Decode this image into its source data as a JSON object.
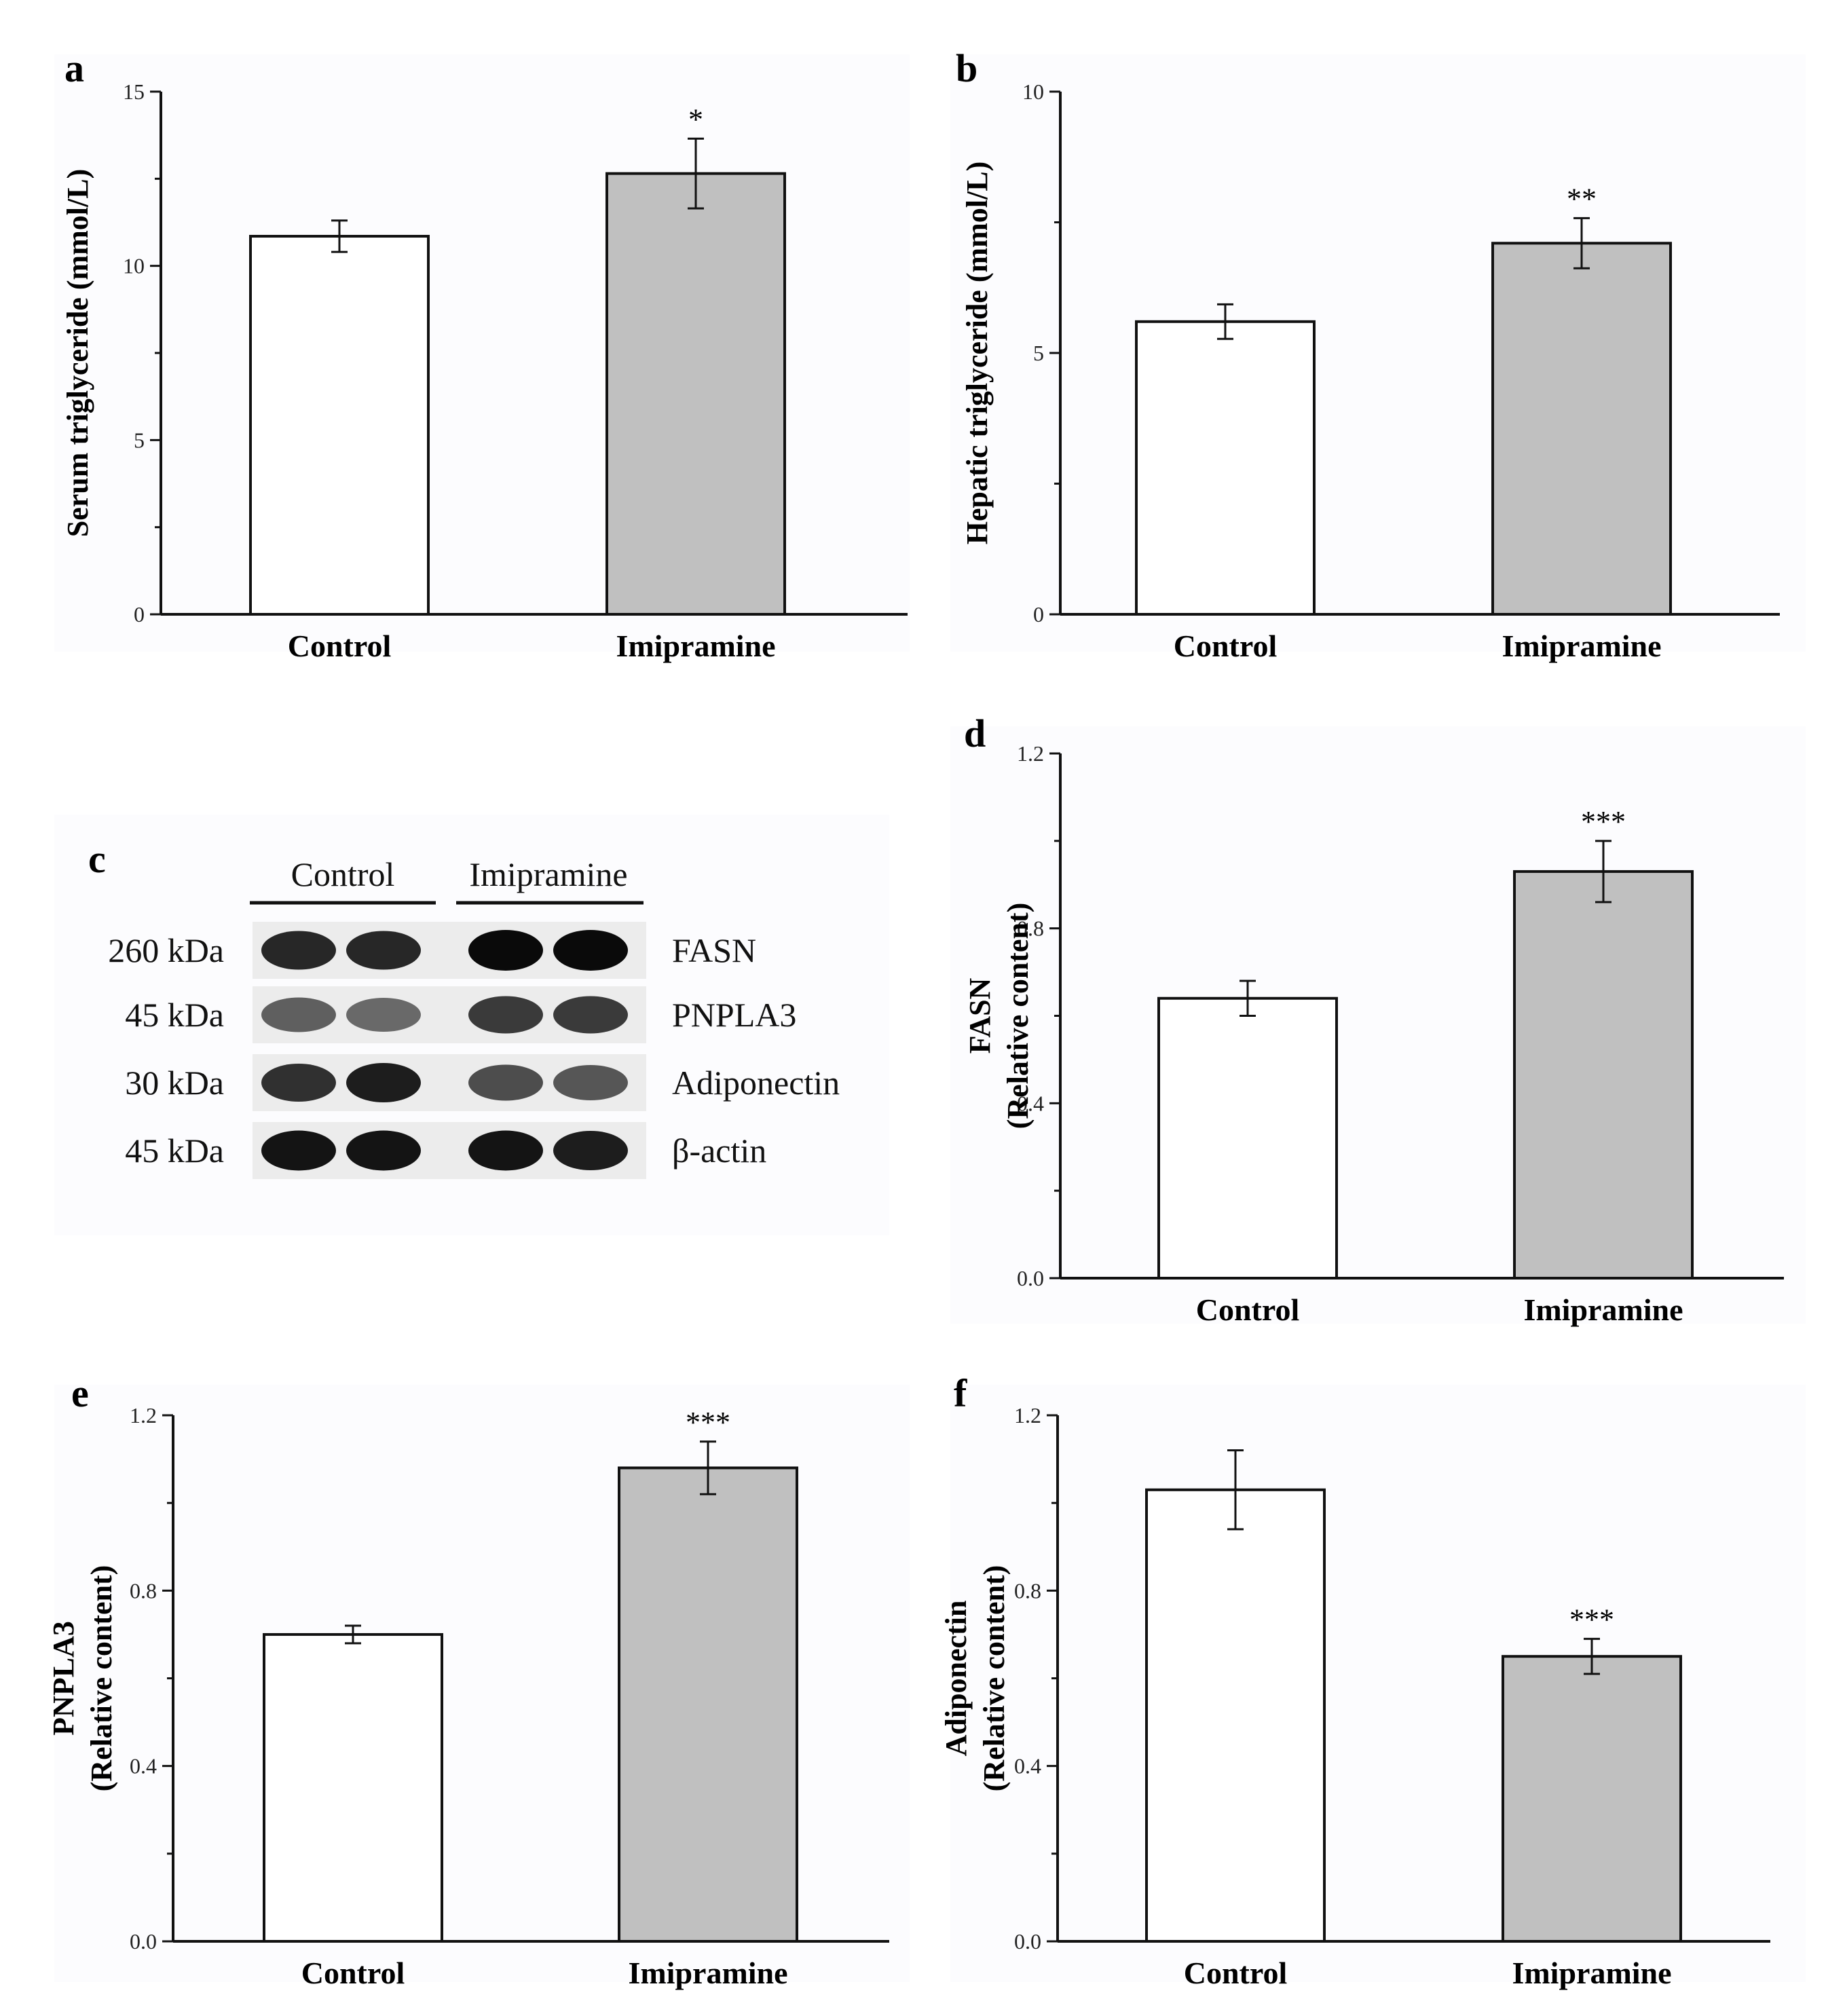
{
  "colors": {
    "control": "#ffffff",
    "imipramine": "#c0c0c0",
    "stroke": "#111111",
    "panel_bg": "#fcfcfe"
  },
  "chart_data": [
    {
      "id": "a",
      "panel": "a",
      "type": "bar",
      "categories": [
        "Control",
        "Imipramine"
      ],
      "values": [
        10.85,
        12.65
      ],
      "errors": [
        0.45,
        1.0
      ],
      "significance": [
        "",
        "*"
      ],
      "ylabel": [
        "Serum triglyceride (mmol/L)"
      ],
      "ylim": [
        0,
        15
      ],
      "yticks": [
        0,
        5,
        10,
        15
      ],
      "ytick_labels": [
        "0",
        "5",
        "10",
        "15"
      ]
    },
    {
      "id": "b",
      "panel": "b",
      "type": "bar",
      "categories": [
        "Control",
        "Imipramine"
      ],
      "values": [
        5.6,
        7.1
      ],
      "errors": [
        0.33,
        0.48
      ],
      "significance": [
        "",
        "**"
      ],
      "ylabel": [
        "Hepatic triglyceride (mmol/L)"
      ],
      "ylim": [
        0,
        10
      ],
      "yticks": [
        0,
        5,
        10
      ],
      "ytick_labels": [
        "0",
        "5",
        "10"
      ]
    },
    {
      "id": "d",
      "panel": "d",
      "type": "bar",
      "categories": [
        "Control",
        "Imipramine"
      ],
      "values": [
        0.64,
        0.93
      ],
      "errors": [
        0.04,
        0.07
      ],
      "significance": [
        "",
        "***"
      ],
      "ylabel": [
        "FASN",
        "(Relative content)"
      ],
      "ylim": [
        0,
        1.2
      ],
      "yticks": [
        0,
        0.4,
        0.8,
        1.2
      ],
      "ytick_labels": [
        "0.0",
        "0.4",
        "0.8",
        "1.2"
      ]
    },
    {
      "id": "e",
      "panel": "e",
      "type": "bar",
      "categories": [
        "Control",
        "Imipramine"
      ],
      "values": [
        0.7,
        1.08
      ],
      "errors": [
        0.02,
        0.06
      ],
      "significance": [
        "",
        "***"
      ],
      "ylabel": [
        "PNPLA3",
        "(Relative content)"
      ],
      "ylim": [
        0,
        1.2
      ],
      "yticks": [
        0,
        0.4,
        0.8,
        1.2
      ],
      "ytick_labels": [
        "0.0",
        "0.4",
        "0.8",
        "1.2"
      ]
    },
    {
      "id": "f",
      "panel": "f",
      "type": "bar",
      "categories": [
        "Control",
        "Imipramine"
      ],
      "values": [
        1.03,
        0.65
      ],
      "errors": [
        0.09,
        0.04
      ],
      "significance": [
        "",
        "***"
      ],
      "ylabel": [
        "Adiponectin",
        "(Relative content)"
      ],
      "ylim": [
        0,
        1.2
      ],
      "yticks": [
        0,
        0.4,
        0.8,
        1.2
      ],
      "ytick_labels": [
        "0.0",
        "0.4",
        "0.8",
        "1.2"
      ]
    }
  ],
  "western_blot": {
    "panel": "c",
    "groups": [
      "Control",
      "Imipramine"
    ],
    "rows": [
      {
        "kda": "260 kDa",
        "protein": "FASN",
        "intensity": [
          0.85,
          0.85,
          1.0,
          1.0
        ]
      },
      {
        "kda": "45 kDa",
        "protein": "PNPLA3",
        "intensity": [
          0.55,
          0.5,
          0.75,
          0.75
        ]
      },
      {
        "kda": "30 kDa",
        "protein": "Adiponectin",
        "intensity": [
          0.8,
          0.9,
          0.65,
          0.6
        ]
      },
      {
        "kda": "45 kDa",
        "protein": "β-actin",
        "intensity": [
          0.95,
          0.95,
          0.95,
          0.9
        ]
      }
    ]
  }
}
